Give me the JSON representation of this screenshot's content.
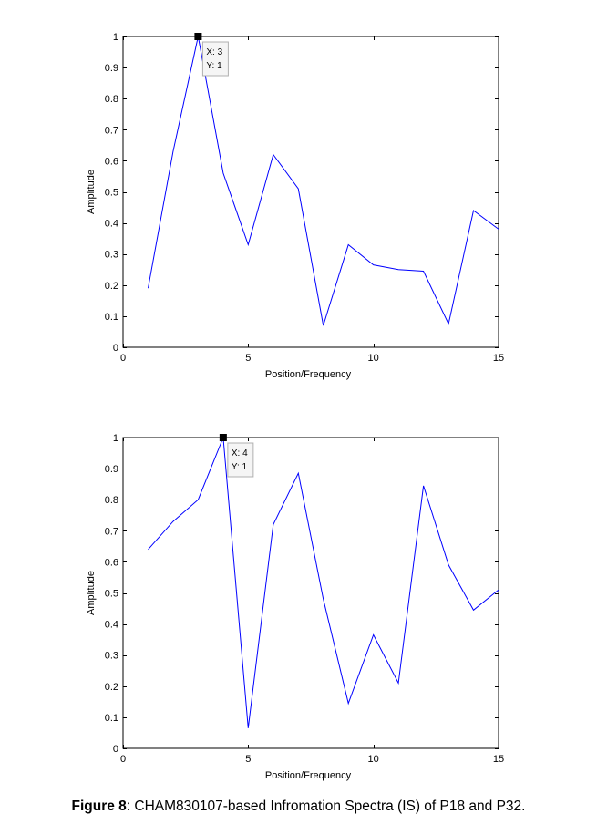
{
  "caption": {
    "label": "Figure 8",
    "text": ": CHAM830107-based Infromation Spectra (IS) of P18 and P32."
  },
  "chart_data": [
    {
      "type": "line",
      "title": "",
      "xlabel": "Position/Frequency",
      "ylabel": "Amplitude",
      "xlim": [
        0,
        15
      ],
      "ylim": [
        0,
        1
      ],
      "xticks": [
        0,
        5,
        10,
        15
      ],
      "yticks": [
        0,
        0.1,
        0.2,
        0.3,
        0.4,
        0.5,
        0.6,
        0.7,
        0.8,
        0.9,
        1
      ],
      "grid": false,
      "line_color": "#0000ff",
      "x": [
        1,
        2,
        3,
        4,
        5,
        6,
        7,
        8,
        9,
        10,
        11,
        12,
        13,
        14,
        15
      ],
      "y": [
        0.19,
        0.63,
        1.0,
        0.56,
        0.33,
        0.62,
        0.51,
        0.07,
        0.33,
        0.265,
        0.25,
        0.245,
        0.075,
        0.44,
        0.38
      ],
      "datatip": {
        "x": 3,
        "y": 1,
        "x_label": "X: 3",
        "y_label": "Y: 1"
      }
    },
    {
      "type": "line",
      "title": "",
      "xlabel": "Position/Frequency",
      "ylabel": "Amplitude",
      "xlim": [
        0,
        15
      ],
      "ylim": [
        0,
        1
      ],
      "xticks": [
        0,
        5,
        10,
        15
      ],
      "yticks": [
        0,
        0.1,
        0.2,
        0.3,
        0.4,
        0.5,
        0.6,
        0.7,
        0.8,
        0.9,
        1
      ],
      "grid": false,
      "line_color": "#0000ff",
      "x": [
        1,
        2,
        3,
        4,
        5,
        6,
        7,
        8,
        9,
        10,
        11,
        12,
        13,
        14,
        15
      ],
      "y": [
        0.64,
        0.73,
        0.8,
        1.0,
        0.065,
        0.72,
        0.885,
        0.48,
        0.145,
        0.365,
        0.21,
        0.845,
        0.59,
        0.445,
        0.51
      ],
      "datatip": {
        "x": 4,
        "y": 1,
        "x_label": "X: 4",
        "y_label": "Y: 1"
      }
    }
  ]
}
